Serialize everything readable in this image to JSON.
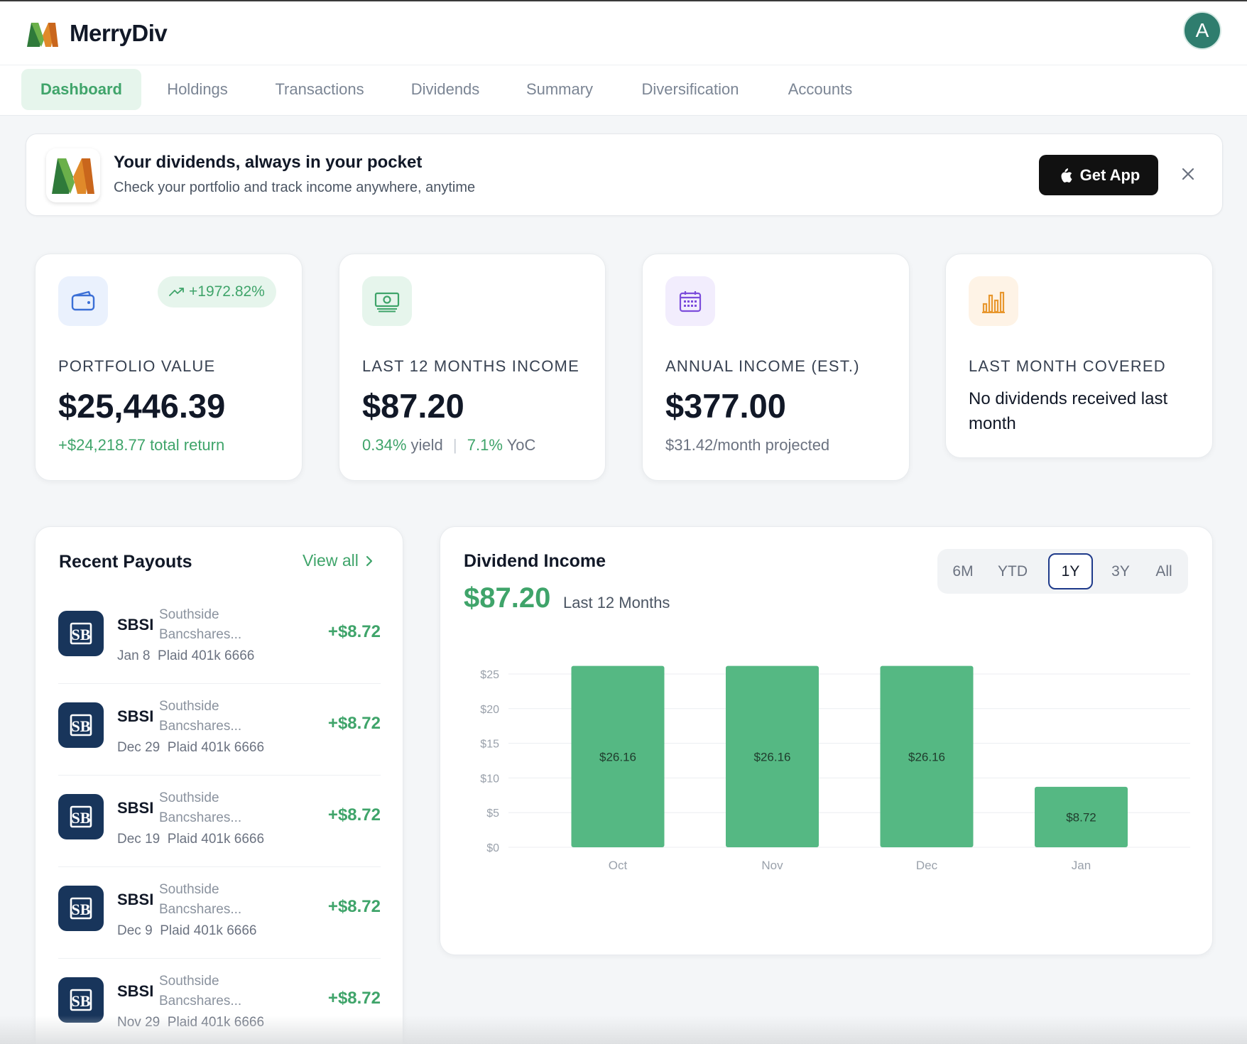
{
  "app": {
    "name": "MerryDiv",
    "avatar_letter": "A"
  },
  "nav": {
    "tabs": [
      "Dashboard",
      "Holdings",
      "Transactions",
      "Dividends",
      "Summary",
      "Diversification",
      "Accounts"
    ],
    "active": "Dashboard"
  },
  "banner": {
    "title": "Your dividends, always in your pocket",
    "subtitle": "Check your portfolio and track income anywhere, anytime",
    "button_label": "Get App"
  },
  "kpis": {
    "portfolio": {
      "label": "PORTFOLIO VALUE",
      "value": "$25,446.39",
      "badge": "+1972.82%",
      "sub": "+$24,218.77 total return"
    },
    "income12": {
      "label": "LAST 12 MONTHS INCOME",
      "value": "$87.20",
      "yield": "0.34%",
      "yield_word": "yield",
      "yoc": "7.1%",
      "yoc_word": "YoC"
    },
    "annual": {
      "label": "ANNUAL INCOME (EST.)",
      "value": "$377.00",
      "sub": "$31.42/month projected"
    },
    "lastmonth": {
      "label": "LAST MONTH COVERED",
      "text": "No dividends received last month"
    }
  },
  "payouts": {
    "title": "Recent Payouts",
    "view_all": "View all",
    "items": [
      {
        "symbol": "SBSI",
        "name": "Southside Bancshares...",
        "date": "Jan 8",
        "account": "Plaid 401k 6666",
        "amount": "+$8.72"
      },
      {
        "symbol": "SBSI",
        "name": "Southside Bancshares...",
        "date": "Dec 29",
        "account": "Plaid 401k 6666",
        "amount": "+$8.72"
      },
      {
        "symbol": "SBSI",
        "name": "Southside Bancshares...",
        "date": "Dec 19",
        "account": "Plaid 401k 6666",
        "amount": "+$8.72"
      },
      {
        "symbol": "SBSI",
        "name": "Southside Bancshares...",
        "date": "Dec 9",
        "account": "Plaid 401k 6666",
        "amount": "+$8.72"
      },
      {
        "symbol": "SBSI",
        "name": "Southside Bancshares...",
        "date": "Nov 29",
        "account": "Plaid 401k 6666",
        "amount": "+$8.72"
      }
    ]
  },
  "income_chart": {
    "title": "Dividend Income",
    "total": "$87.20",
    "period_label": "Last 12 Months",
    "periods": [
      "6M",
      "YTD",
      "1Y",
      "3Y",
      "All"
    ],
    "active_period": "1Y"
  },
  "colors": {
    "accent": "#3fa46a",
    "bar": "#55b883",
    "ticker_bg": "#18355b",
    "active_border": "#1e3a8a"
  },
  "chart_data": {
    "type": "bar",
    "categories": [
      "Oct",
      "Nov",
      "Dec",
      "Jan"
    ],
    "values": [
      26.16,
      26.16,
      26.16,
      8.72
    ],
    "value_labels": [
      "$26.16",
      "$26.16",
      "$26.16",
      "$8.72"
    ],
    "yticks": [
      "$0",
      "$5",
      "$10",
      "$15",
      "$20",
      "$25"
    ],
    "ylim": [
      0,
      25
    ],
    "grid": true
  }
}
